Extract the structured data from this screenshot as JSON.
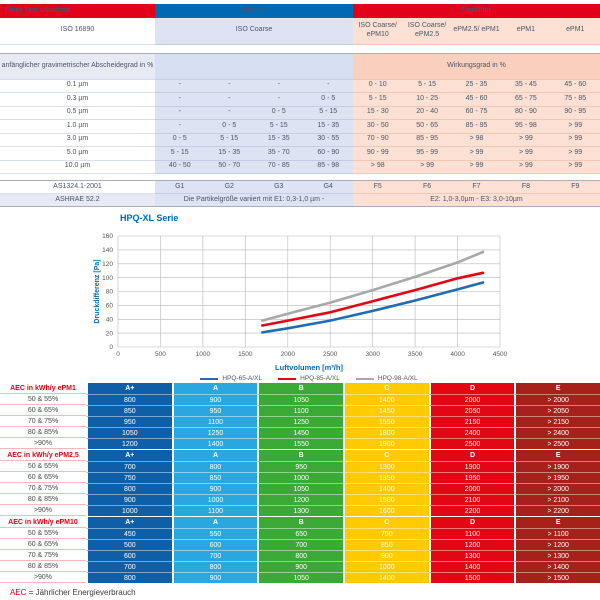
{
  "iso_table": {
    "header": {
      "col1": "Filter Test Standard",
      "vorfilter": "Vorfilter",
      "feinfilter": "Feinfilter"
    },
    "iso_row": {
      "label": "ISO 16890",
      "vorfilter": "ISO Coarse",
      "fein": [
        "ISO Coarse/ ePM10",
        "ISO Coarse/ ePM2.5",
        "ePM2.5/ ePM1",
        "ePM1",
        "ePM1"
      ]
    },
    "subheader": {
      "label": "anfänglicher gravimetrischer Abscheidegrad in %",
      "right": "Wirkungsgrad in %"
    },
    "rows": [
      {
        "label": "0.1 µm",
        "vor": [
          "-",
          "-",
          "-",
          "-"
        ],
        "fein": [
          "0 - 10",
          "5 - 15",
          "25 - 35",
          "35 - 45",
          "45 - 60"
        ]
      },
      {
        "label": "0.3 µm",
        "vor": [
          "-",
          "-",
          "-",
          "0 - 5"
        ],
        "fein": [
          "5 - 15",
          "10 - 25",
          "45 - 60",
          "65 - 75",
          "75 - 85"
        ]
      },
      {
        "label": "0.5 µm",
        "vor": [
          "-",
          "-",
          "0 - 5",
          "5 - 15"
        ],
        "fein": [
          "15 - 30",
          "20 - 40",
          "60 - 75",
          "80 - 90",
          "90 - 95"
        ]
      },
      {
        "label": "1.0 µm",
        "vor": [
          "-",
          "0 - 5",
          "5 - 15",
          "15 - 35"
        ],
        "fein": [
          "30 - 50",
          "50 - 65",
          "85 - 95",
          "95 - 98",
          "> 99"
        ]
      },
      {
        "label": "3.0 µm",
        "vor": [
          "0 - 5",
          "5 - 15",
          "15 - 35",
          "30 - 55"
        ],
        "fein": [
          "70 - 90",
          "85 - 95",
          "> 98",
          "> 99",
          "> 99"
        ]
      },
      {
        "label": "5.0 µm",
        "vor": [
          "5 - 15",
          "15 - 35",
          "35 - 70",
          "60 - 90"
        ],
        "fein": [
          "90 - 99",
          "95 - 99",
          "> 99",
          "> 99",
          "> 99"
        ]
      },
      {
        "label": "10.0 µm",
        "vor": [
          "40 - 50",
          "50 - 70",
          "70 - 85",
          "85 - 98"
        ],
        "fein": [
          "> 98",
          "> 99",
          "> 99",
          "> 99",
          "> 99"
        ]
      }
    ],
    "as_row": {
      "label": "AS1324.1-2001",
      "vor": [
        "G1",
        "G2",
        "G3",
        "G4"
      ],
      "fein": [
        "F5",
        "F6",
        "F7",
        "F8",
        "F9"
      ]
    },
    "ashrae_row": {
      "label": "ASHRAE 52.2",
      "left_text": "Die Partikelgröße variiert mit E1: 0,3-1,0 µm -",
      "right_text": "E2: 1,0-3,0µm - E3: 3,0-10µm"
    }
  },
  "chart_data": {
    "type": "line",
    "title": "HPQ-XL Serie",
    "xlabel": "Luftvolumen [m³/h]",
    "ylabel": "Druckdifferenz [Pa]",
    "xlim": [
      0,
      4500
    ],
    "ylim": [
      0,
      160
    ],
    "xticks": [
      0,
      500,
      1000,
      1500,
      2000,
      2500,
      3000,
      3500,
      4000,
      4500
    ],
    "yticks": [
      0,
      20,
      40,
      60,
      80,
      100,
      120,
      140,
      160
    ],
    "grid": true,
    "legend_position": "bottom",
    "series": [
      {
        "name": "HPQ-65-A/XL",
        "color": "#1e6cb5",
        "points": [
          [
            1700,
            21
          ],
          [
            2000,
            27
          ],
          [
            2500,
            38
          ],
          [
            3000,
            52
          ],
          [
            3500,
            67
          ],
          [
            4000,
            83
          ],
          [
            4300,
            93
          ]
        ]
      },
      {
        "name": "HPQ-85-A/XL",
        "color": "#e30613",
        "points": [
          [
            1700,
            31
          ],
          [
            2000,
            38
          ],
          [
            2500,
            50
          ],
          [
            3000,
            66
          ],
          [
            3500,
            82
          ],
          [
            4000,
            99
          ],
          [
            4300,
            107
          ]
        ]
      },
      {
        "name": "HPQ-98-A/XL",
        "color": "#a8a8a8",
        "points": [
          [
            1700,
            38
          ],
          [
            2000,
            48
          ],
          [
            2500,
            64
          ],
          [
            3000,
            82
          ],
          [
            3500,
            101
          ],
          [
            4000,
            122
          ],
          [
            4300,
            137
          ]
        ]
      }
    ]
  },
  "aec_style": {
    "column_colors": [
      "#0e5fa8",
      "#29a8e0",
      "#3aa935",
      "#ffcb00",
      "#e30613",
      "#a62119"
    ]
  },
  "aec_tables": [
    {
      "title": "AEC in kWh/y ePM1",
      "columns": [
        "A+",
        "A",
        "B",
        "C",
        "D",
        "E"
      ],
      "rows": [
        {
          "label": "50 & 55%",
          "values": [
            "800",
            "900",
            "1050",
            "1400",
            "2000",
            "> 2000"
          ]
        },
        {
          "label": "60 & 65%",
          "values": [
            "850",
            "950",
            "1100",
            "1450",
            "2050",
            "> 2050"
          ]
        },
        {
          "label": "70 & 75%",
          "values": [
            "950",
            "1100",
            "1250",
            "1550",
            "2150",
            "> 2150"
          ]
        },
        {
          "label": "80 & 85%",
          "values": [
            "1050",
            "1250",
            "1450",
            "1800",
            "2400",
            "> 2400"
          ]
        },
        {
          "label": ">90%",
          "values": [
            "1200",
            "1400",
            "1550",
            "1900",
            "2500",
            "> 2500"
          ]
        }
      ]
    },
    {
      "title": "AEC in kWh/y ePM2,5",
      "columns": [
        "A+",
        "A",
        "B",
        "C",
        "D",
        "E"
      ],
      "rows": [
        {
          "label": "50 & 55%",
          "values": [
            "700",
            "800",
            "950",
            "1300",
            "1900",
            "> 1900"
          ]
        },
        {
          "label": "60 & 65%",
          "values": [
            "750",
            "850",
            "1000",
            "1350",
            "1950",
            "> 1950"
          ]
        },
        {
          "label": "70 & 75%",
          "values": [
            "800",
            "900",
            "1050",
            "1400",
            "2000",
            "> 2000"
          ]
        },
        {
          "label": "80 & 85%",
          "values": [
            "900",
            "1000",
            "1200",
            "1500",
            "2100",
            "> 2100"
          ]
        },
        {
          "label": ">90%",
          "values": [
            "1000",
            "1100",
            "1300",
            "1600",
            "2200",
            "> 2200"
          ]
        }
      ]
    },
    {
      "title": "AEC in kWh/y ePM10",
      "columns": [
        "A+",
        "A",
        "B",
        "C",
        "D",
        "E"
      ],
      "rows": [
        {
          "label": "50 & 55%",
          "values": [
            "450",
            "550",
            "650",
            "750",
            "1100",
            "> 1100"
          ]
        },
        {
          "label": "60 & 65%",
          "values": [
            "500",
            "600",
            "700",
            "850",
            "1200",
            "> 1200"
          ]
        },
        {
          "label": "70 & 75%",
          "values": [
            "600",
            "700",
            "800",
            "900",
            "1300",
            "> 1300"
          ]
        },
        {
          "label": "80 & 85%",
          "values": [
            "700",
            "800",
            "900",
            "1000",
            "1400",
            "> 1400"
          ]
        },
        {
          "label": ">90%",
          "values": [
            "800",
            "900",
            "1050",
            "1400",
            "1500",
            "> 1500"
          ]
        }
      ]
    }
  ],
  "footer": {
    "abbr": "AEC",
    "text": "= Jährlicher Energieverbrauch"
  }
}
